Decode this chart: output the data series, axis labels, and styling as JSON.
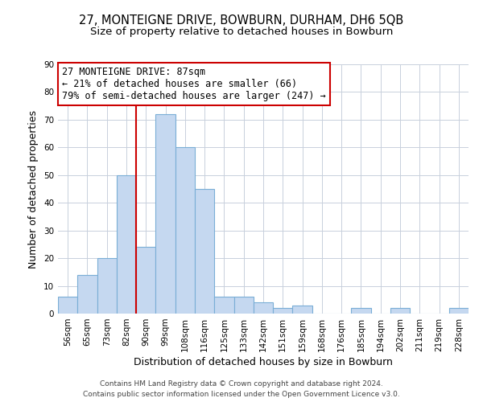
{
  "title": "27, MONTEIGNE DRIVE, BOWBURN, DURHAM, DH6 5QB",
  "subtitle": "Size of property relative to detached houses in Bowburn",
  "xlabel": "Distribution of detached houses by size in Bowburn",
  "ylabel": "Number of detached properties",
  "bar_labels": [
    "56sqm",
    "65sqm",
    "73sqm",
    "82sqm",
    "90sqm",
    "99sqm",
    "108sqm",
    "116sqm",
    "125sqm",
    "133sqm",
    "142sqm",
    "151sqm",
    "159sqm",
    "168sqm",
    "176sqm",
    "185sqm",
    "194sqm",
    "202sqm",
    "211sqm",
    "219sqm",
    "228sqm"
  ],
  "bar_values": [
    6,
    14,
    20,
    50,
    24,
    72,
    60,
    45,
    6,
    6,
    4,
    2,
    3,
    0,
    0,
    2,
    0,
    2,
    0,
    0,
    2
  ],
  "bar_color": "#c5d8f0",
  "bar_edge_color": "#7aaed6",
  "vline_color": "#cc0000",
  "annotation_text_line1": "27 MONTEIGNE DRIVE: 87sqm",
  "annotation_text_line2": "← 21% of detached houses are smaller (66)",
  "annotation_text_line3": "79% of semi-detached houses are larger (247) →",
  "ylim": [
    0,
    90
  ],
  "yticks": [
    0,
    10,
    20,
    30,
    40,
    50,
    60,
    70,
    80,
    90
  ],
  "footer_line1": "Contains HM Land Registry data © Crown copyright and database right 2024.",
  "footer_line2": "Contains public sector information licensed under the Open Government Licence v3.0.",
  "bg_color": "#ffffff",
  "grid_color": "#c8d0dc",
  "title_fontsize": 10.5,
  "subtitle_fontsize": 9.5,
  "axis_label_fontsize": 9,
  "tick_fontsize": 7.5,
  "annotation_fontsize": 8.5,
  "footer_fontsize": 6.5
}
